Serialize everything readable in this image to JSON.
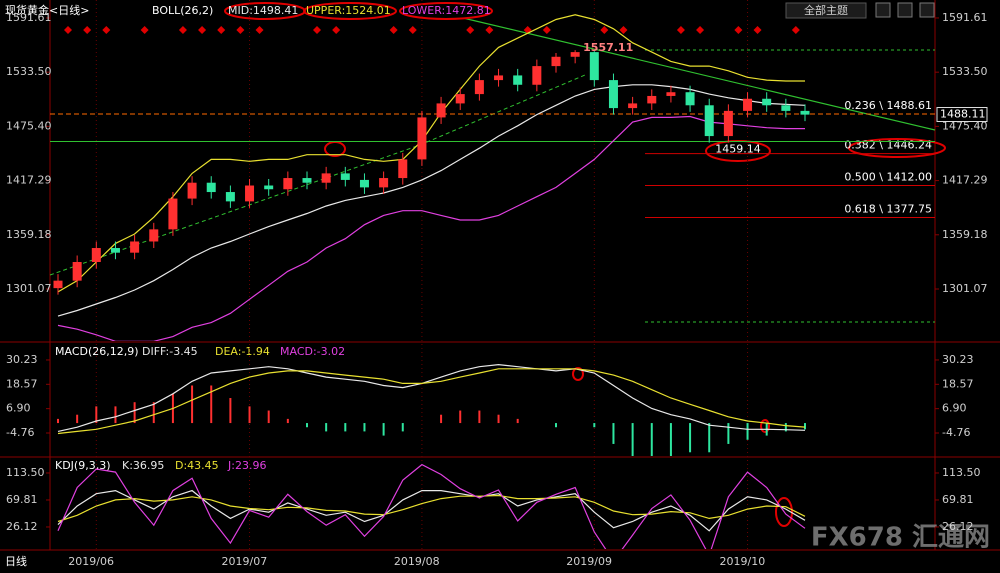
{
  "chart_data": [
    {
      "type": "candlestick",
      "title": "现货黄金<日线>",
      "subtitle": "BOLL(26,2)",
      "theme_menu": "全部主题",
      "period_tab": "日线",
      "watermark": "FX678 汇通网",
      "categories": [
        null,
        null,
        "2019/06",
        null,
        null,
        null,
        null,
        null,
        null,
        null,
        "2019/07",
        null,
        null,
        null,
        null,
        null,
        null,
        null,
        null,
        "2019/08",
        null,
        null,
        null,
        null,
        null,
        null,
        null,
        null,
        "2019/09",
        null,
        null,
        null,
        null,
        null,
        null,
        null,
        "2019/10",
        null,
        null,
        null
      ],
      "open": [
        1302,
        1310,
        1330,
        1345,
        1340,
        1352,
        1365,
        1398,
        1415,
        1405,
        1395,
        1412,
        1408,
        1420,
        1415,
        1425,
        1418,
        1410,
        1420,
        1440,
        1485,
        1500,
        1510,
        1525,
        1530,
        1520,
        1540,
        1550,
        1555,
        1525,
        1495,
        1500,
        1508,
        1512,
        1498,
        1465,
        1492,
        1505,
        1498,
        1492
      ],
      "high": [
        1317,
        1337,
        1352,
        1352,
        1359,
        1372,
        1405,
        1422,
        1422,
        1412,
        1419,
        1419,
        1427,
        1427,
        1432,
        1432,
        1425,
        1427,
        1447,
        1492,
        1507,
        1517,
        1532,
        1537,
        1537,
        1547,
        1554,
        1557.11,
        1556,
        1532,
        1507,
        1515,
        1519,
        1519,
        1505,
        1499,
        1512,
        1512,
        1505,
        1499
      ],
      "low": [
        1295,
        1303,
        1323,
        1333,
        1333,
        1345,
        1358,
        1391,
        1398,
        1388,
        1388,
        1401,
        1401,
        1408,
        1408,
        1411,
        1403,
        1403,
        1413,
        1433,
        1478,
        1493,
        1503,
        1518,
        1513,
        1513,
        1533,
        1543,
        1518,
        1488,
        1488,
        1493,
        1501,
        1491,
        1458,
        1458,
        1485,
        1491,
        1485,
        1481
      ],
      "close": [
        1310,
        1330,
        1345,
        1340,
        1352,
        1365,
        1398,
        1415,
        1405,
        1395,
        1412,
        1408,
        1420,
        1415,
        1425,
        1418,
        1410,
        1420,
        1440,
        1485,
        1500,
        1510,
        1525,
        1530,
        1520,
        1540,
        1550,
        1555,
        1525,
        1495,
        1500,
        1508,
        1512,
        1498,
        1465,
        1492,
        1505,
        1498,
        1492,
        1488
      ],
      "up_color": "#ff3030",
      "down_color": "#2ee6a0",
      "series": [
        {
          "name": "MID:1498.41",
          "color": "#e8e8e8",
          "values": [
            1272,
            1278,
            1285,
            1292,
            1300,
            1310,
            1322,
            1335,
            1345,
            1352,
            1360,
            1368,
            1375,
            1382,
            1390,
            1396,
            1400,
            1404,
            1410,
            1418,
            1428,
            1440,
            1452,
            1465,
            1476,
            1488,
            1498,
            1508,
            1515,
            1518,
            1520,
            1520,
            1518,
            1515,
            1510,
            1506,
            1503,
            1500,
            1499,
            1498
          ]
        },
        {
          "name": "UPPER:1524.01",
          "color": "#e8e030",
          "values": [
            1298,
            1310,
            1330,
            1350,
            1360,
            1378,
            1400,
            1425,
            1440,
            1440,
            1438,
            1440,
            1440,
            1445,
            1445,
            1445,
            1440,
            1438,
            1440,
            1460,
            1490,
            1515,
            1540,
            1560,
            1570,
            1580,
            1590,
            1595,
            1590,
            1580,
            1565,
            1555,
            1545,
            1540,
            1540,
            1535,
            1528,
            1525,
            1524,
            1524
          ]
        },
        {
          "name": "LOWER:1472.81",
          "color": "#e040e0",
          "values": [
            1262,
            1258,
            1252,
            1245,
            1245,
            1245,
            1250,
            1260,
            1265,
            1275,
            1290,
            1305,
            1320,
            1330,
            1345,
            1355,
            1370,
            1380,
            1385,
            1385,
            1380,
            1375,
            1375,
            1380,
            1390,
            1400,
            1410,
            1425,
            1440,
            1460,
            1480,
            1485,
            1485,
            1486,
            1480,
            1478,
            1476,
            1474,
            1473,
            1473
          ]
        }
      ],
      "ylim": [
        1246.4,
        1605.5
      ],
      "yticks": [
        1591.61,
        {
          "value": 1533.5,
          "label": "1533.50"
        },
        {
          "value": 1475.4,
          "label": "1475.40"
        },
        1417.29,
        1359.18,
        1301.07
      ],
      "levels": [
        {
          "value": 1488.61,
          "label": "0.236 \\ 1488.61"
        },
        {
          "value": 1446.24,
          "label": "0.382 \\ 1446.24"
        },
        {
          "value": 1412,
          "label": "0.500 \\ 1412.00"
        },
        {
          "value": 1377.75,
          "label": "0.618 \\ 1377.75"
        }
      ],
      "peak_label": 1557.11,
      "support_level": 1459.14,
      "last_price": 1488.11
    },
    {
      "type": "macd",
      "title": "MACD(26,12,9)",
      "series": [
        {
          "name": "DIFF:-3.45",
          "color": "#e8e8e8",
          "values": [
            -4,
            -2,
            1,
            3,
            6,
            9,
            14,
            20,
            24,
            25,
            26,
            27,
            26,
            24,
            22,
            21,
            20,
            18,
            17,
            19,
            22,
            25,
            27,
            28,
            27,
            26,
            25,
            26,
            24,
            18,
            12,
            7,
            4,
            2,
            -1,
            -2,
            -3,
            -3,
            -3.2,
            -3.45
          ]
        },
        {
          "name": "DEA:-1.94",
          "color": "#e8e030",
          "values": [
            -5,
            -4,
            -3,
            -1,
            1,
            4,
            7,
            11,
            15,
            19,
            22,
            24,
            25,
            25,
            24,
            23,
            22,
            21,
            19,
            19,
            20,
            22,
            24,
            26,
            26,
            26,
            26,
            26,
            25,
            23,
            20,
            16,
            12,
            9,
            6,
            3,
            1,
            0,
            -1.2,
            -1.94
          ]
        }
      ],
      "histogram": {
        "name": "MACD:-3.02",
        "color": "#e040e0",
        "up_color": "#ff3030",
        "down_color": "#2ee6a0",
        "values": [
          2,
          4,
          8,
          8,
          10,
          10,
          14,
          18,
          18,
          12,
          8,
          6,
          2,
          -2,
          -4,
          -4,
          -4,
          -6,
          -4,
          0,
          4,
          6,
          6,
          4,
          2,
          0,
          -2,
          0,
          -2,
          -10,
          -16,
          -18,
          -16,
          -14,
          -14,
          -10,
          -8,
          -6,
          -4,
          -3.02
        ]
      },
      "ylim": [
        -15.3,
        37.4
      ],
      "yticks": [
        30.23,
        18.57,
        {
          "value": 6.9,
          "label": "6.90"
        },
        -4.76
      ]
    },
    {
      "type": "kdj",
      "title": "KDJ(9,3,3)",
      "series": [
        {
          "name": "K:36.95",
          "color": "#e8e8e8",
          "values": [
            30,
            60,
            80,
            85,
            70,
            55,
            75,
            85,
            60,
            40,
            55,
            50,
            65,
            55,
            45,
            50,
            35,
            45,
            70,
            85,
            85,
            80,
            75,
            80,
            60,
            70,
            75,
            80,
            50,
            25,
            35,
            50,
            60,
            45,
            20,
            55,
            75,
            70,
            55,
            36.95
          ]
        },
        {
          "name": "D:43.45",
          "color": "#e8e030",
          "values": [
            35,
            45,
            60,
            70,
            72,
            68,
            70,
            75,
            70,
            60,
            56,
            54,
            58,
            57,
            53,
            52,
            47,
            46,
            54,
            64,
            72,
            76,
            76,
            77,
            72,
            72,
            73,
            75,
            66,
            52,
            46,
            47,
            51,
            49,
            40,
            45,
            55,
            60,
            59,
            43.45
          ]
        },
        {
          "name": "J:23.96",
          "color": "#e040e0",
          "values": [
            20,
            90,
            120,
            115,
            66,
            29,
            85,
            105,
            40,
            0,
            53,
            42,
            79,
            51,
            29,
            46,
            11,
            43,
            102,
            127,
            111,
            88,
            73,
            86,
            36,
            66,
            79,
            90,
            18,
            -29,
            13,
            56,
            78,
            37,
            -20,
            75,
            115,
            90,
            47,
            23.96
          ]
        }
      ],
      "ylim": [
        -7.9,
        134.5
      ],
      "yticks": [
        {
          "value": 113.5,
          "label": "113.50"
        },
        69.81,
        26.12
      ]
    }
  ]
}
